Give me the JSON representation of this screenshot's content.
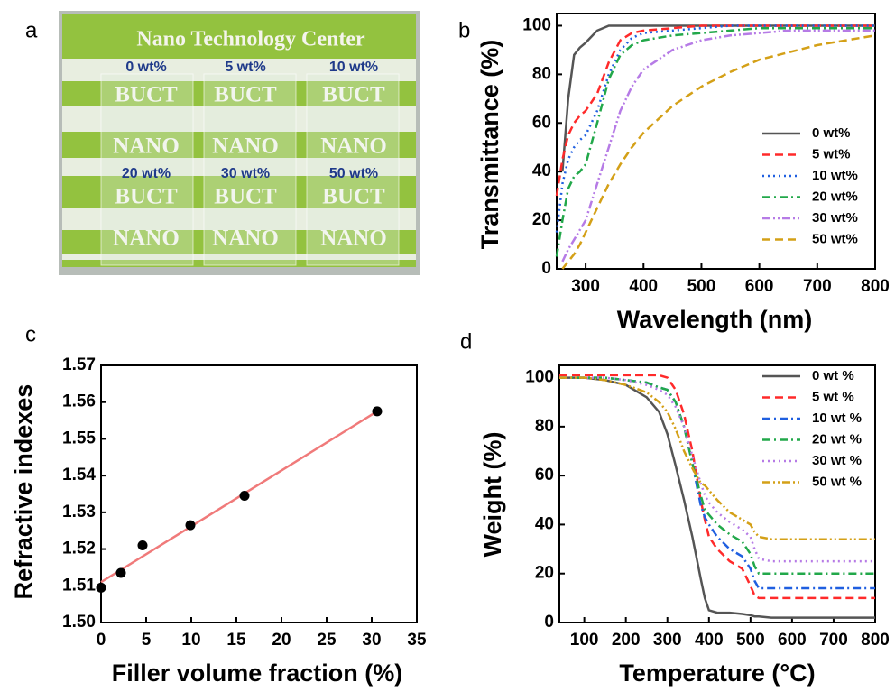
{
  "chart_data": [
    {
      "type": "photo",
      "panel": "a",
      "title": "Nano Technology Center",
      "labels": [
        "0 wt%",
        "5 wt%",
        "10 wt%",
        "20 wt%",
        "30 wt%",
        "50 wt%"
      ],
      "texts": [
        "BUCT",
        "NANO"
      ]
    },
    {
      "type": "line",
      "panel": "b",
      "xlabel": "Wavelength (nm)",
      "ylabel": "Transmittance (%)",
      "xlim": [
        250,
        800
      ],
      "xticks": [
        300,
        400,
        500,
        600,
        700,
        800
      ],
      "ylim": [
        0,
        105
      ],
      "yticks": [
        0,
        20,
        40,
        60,
        80,
        100
      ],
      "legend": "lower-right",
      "x": [
        250,
        260,
        270,
        280,
        290,
        300,
        320,
        340,
        360,
        380,
        400,
        450,
        500,
        550,
        600,
        650,
        700,
        750,
        800
      ],
      "series": [
        {
          "name": "0 wt%",
          "color": "#555555",
          "style": "solid",
          "values": [
            null,
            40,
            70,
            88,
            91,
            93,
            98,
            100,
            100,
            100,
            100,
            100,
            100,
            100,
            100,
            100,
            100,
            100,
            100
          ]
        },
        {
          "name": "5 wt%",
          "color": "#ff2a2a",
          "style": "dashed",
          "values": [
            30,
            45,
            55,
            60,
            63,
            65,
            72,
            85,
            94,
            97,
            98,
            99,
            100,
            100,
            100,
            100,
            100,
            100,
            100
          ]
        },
        {
          "name": "10 wt%",
          "color": "#1f5fe0",
          "style": "dotted",
          "values": [
            15,
            35,
            45,
            50,
            53,
            55,
            65,
            80,
            90,
            95,
            97,
            98,
            99,
            100,
            100,
            100,
            100,
            100,
            100
          ]
        },
        {
          "name": "20 wt%",
          "color": "#22a84a",
          "style": "dashdot",
          "values": [
            5,
            20,
            33,
            38,
            40,
            43,
            60,
            78,
            88,
            92,
            94,
            96,
            97,
            98,
            99,
            99,
            99,
            99,
            99
          ]
        },
        {
          "name": "30 wt%",
          "color": "#b67be6",
          "style": "dashdotdot",
          "values": [
            null,
            3,
            8,
            12,
            16,
            20,
            35,
            50,
            65,
            75,
            82,
            90,
            94,
            96,
            97,
            98,
            98,
            98,
            98
          ]
        },
        {
          "name": "50 wt%",
          "color": "#d4a017",
          "style": "dashed",
          "values": [
            null,
            0,
            3,
            6,
            10,
            15,
            25,
            35,
            43,
            50,
            56,
            67,
            75,
            81,
            86,
            89,
            92,
            94,
            96
          ]
        }
      ]
    },
    {
      "type": "scatter",
      "panel": "c",
      "xlabel": "Filler volume fraction (%)",
      "ylabel": "Refractive indexes",
      "xlim": [
        0,
        35
      ],
      "xticks": [
        0,
        5,
        10,
        15,
        20,
        25,
        30,
        35
      ],
      "ylim": [
        1.5,
        1.57
      ],
      "yticks": [
        {
          "value": 1.5,
          "label": "1.50"
        },
        1.51,
        1.52,
        1.53,
        1.54,
        1.55,
        1.56,
        1.57
      ],
      "x": [
        0,
        2.2,
        4.6,
        9.9,
        15.9,
        30.6
      ],
      "values": [
        1.5095,
        1.5135,
        1.521,
        1.5265,
        1.5345,
        1.5575
      ],
      "color": "#000000",
      "fit": {
        "x": [
          0,
          30.6
        ],
        "values": [
          1.511,
          1.5575
        ],
        "color": "#f07a7a"
      }
    },
    {
      "type": "line",
      "panel": "d",
      "xlabel": "Temperature (°C)",
      "ylabel": "Weight  (%)",
      "xlim": [
        40,
        800
      ],
      "xticks": [
        100,
        200,
        300,
        400,
        500,
        600,
        700,
        800
      ],
      "ylim": [
        0,
        105
      ],
      "yticks": [
        0,
        20,
        40,
        60,
        80,
        100
      ],
      "legend": "upper-right",
      "x": [
        40,
        100,
        150,
        200,
        250,
        280,
        300,
        320,
        340,
        360,
        380,
        390,
        400,
        420,
        450,
        480,
        500,
        510,
        520,
        550,
        600,
        700,
        800
      ],
      "series": [
        {
          "name": "0 wt %",
          "color": "#555555",
          "style": "solid",
          "values": [
            100,
            100,
            99,
            97,
            92,
            86,
            77,
            64,
            50,
            35,
            18,
            10,
            5,
            4,
            4,
            3.5,
            3,
            2.5,
            2.5,
            2,
            2,
            2,
            2
          ]
        },
        {
          "name": "5 wt %",
          "color": "#ff2a2a",
          "style": "dashed",
          "values": [
            101,
            101,
            101,
            101,
            101,
            101,
            100,
            95,
            85,
            70,
            50,
            42,
            35,
            30,
            25,
            22,
            15,
            11,
            10,
            10,
            10,
            10,
            10
          ]
        },
        {
          "name": "10 wt %",
          "color": "#1f5fe0",
          "style": "dashdot",
          "values": [
            100,
            100,
            100,
            99,
            98,
            96,
            95,
            90,
            80,
            65,
            48,
            43,
            40,
            35,
            30,
            27,
            22,
            17,
            14,
            14,
            14,
            14,
            14
          ]
        },
        {
          "name": "20 wt %",
          "color": "#22a84a",
          "style": "dashdot",
          "values": [
            100,
            100,
            100,
            99,
            98,
            96,
            95,
            90,
            80,
            65,
            52,
            46,
            44,
            40,
            36,
            33,
            28,
            23,
            20,
            20,
            20,
            20,
            20
          ]
        },
        {
          "name": "30 wt %",
          "color": "#b67be6",
          "style": "dotted",
          "values": [
            100,
            100,
            100,
            99,
            97,
            95,
            93,
            88,
            80,
            68,
            57,
            52,
            49,
            45,
            41,
            38,
            35,
            30,
            26,
            25,
            25,
            25,
            25
          ]
        },
        {
          "name": "50 wt %",
          "color": "#d4a017",
          "style": "dashdotdot",
          "values": [
            100,
            100,
            99,
            97,
            94,
            90,
            86,
            79,
            70,
            63,
            57,
            56,
            54,
            50,
            45,
            42,
            40,
            37,
            35,
            34,
            34,
            34,
            34
          ]
        }
      ]
    }
  ]
}
